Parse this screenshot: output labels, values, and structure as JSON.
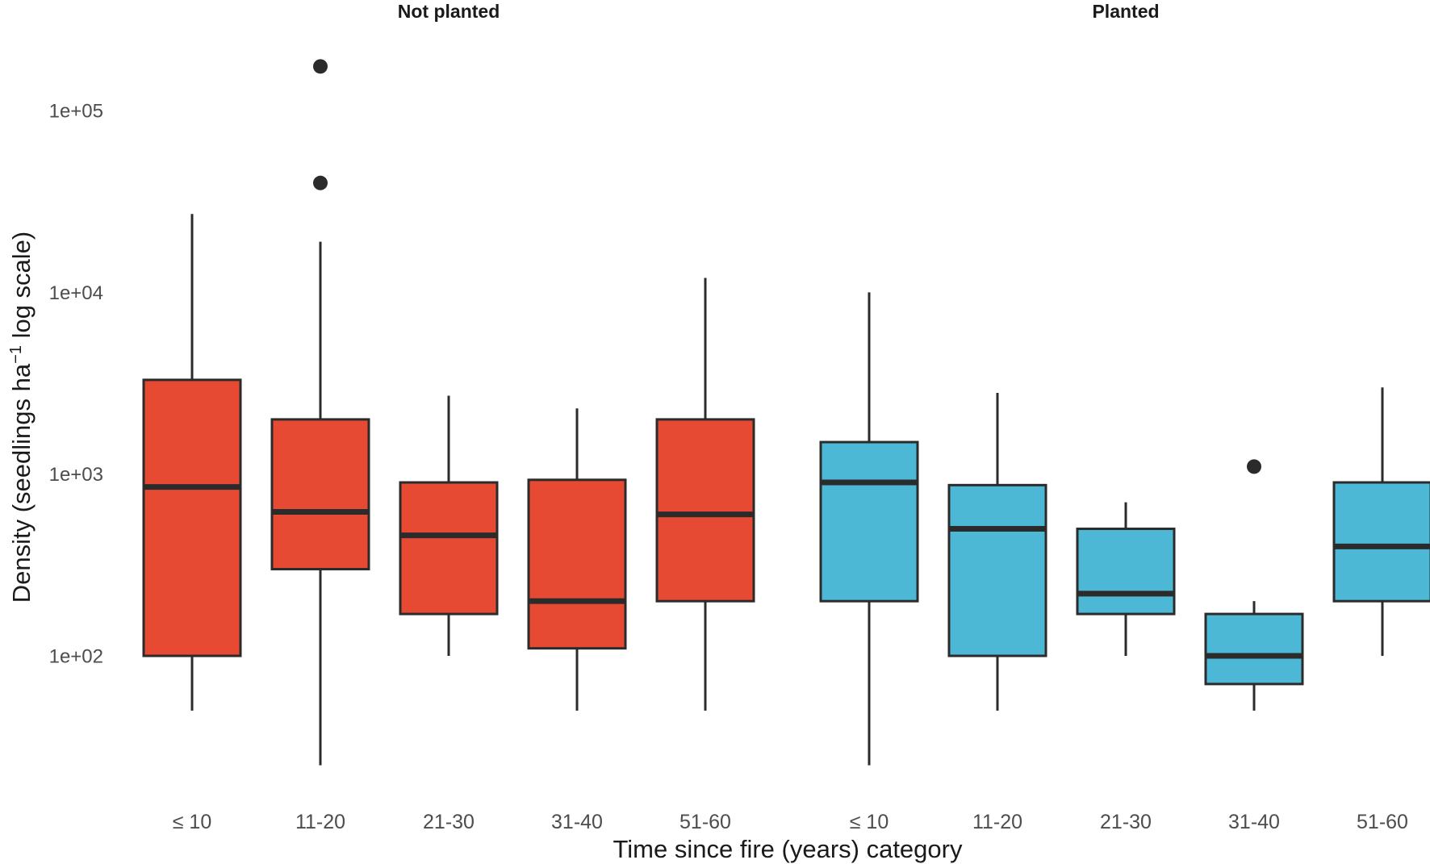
{
  "figure": {
    "background": "#FFFFFF",
    "panel_titles": [
      "Not planted",
      "Planted"
    ],
    "x_axis_title": "Time since fire (years) category",
    "y_axis_title": {
      "prefix": "Density (seedlings ha",
      "superscript": "−1",
      "suffix": " log scale)"
    },
    "colors": {
      "not_planted_fill": "#E64A33",
      "planted_fill": "#4DB8D6",
      "box_stroke": "#2B2B2B",
      "median_stroke": "#2B2B2B",
      "outlier_fill": "#2B2B2B",
      "axis_text": "#4D4D4D",
      "title_text": "#1A1A1A"
    }
  },
  "chart_data": {
    "type": "boxplot",
    "orientation": "vertical",
    "title": "",
    "xlabel": "Time since fire (years) category",
    "ylabel": "Density (seedlings ha−1 log scale)",
    "y_scale": "log10",
    "ylim": [
      20,
      200000
    ],
    "grid": false,
    "y_ticks": [
      "1e+02",
      "1e+03",
      "1e+04",
      "1e+05"
    ],
    "y_tick_values": [
      100,
      1000,
      10000,
      100000
    ],
    "categories": [
      "≤ 10",
      "11-20",
      "21-30",
      "31-40",
      "51-60"
    ],
    "panels": [
      {
        "title": "Not planted",
        "fill": "#E64A33",
        "boxes": [
          {
            "category": "≤ 10",
            "whisker_low": 50,
            "q1": 100,
            "median": 850,
            "q3": 3300,
            "whisker_high": 27000,
            "outliers": []
          },
          {
            "category": "11-20",
            "whisker_low": 25,
            "q1": 300,
            "median": 620,
            "q3": 2000,
            "whisker_high": 19000,
            "outliers": [
              40000,
              175000
            ]
          },
          {
            "category": "21-30",
            "whisker_low": 100,
            "q1": 170,
            "median": 460,
            "q3": 900,
            "whisker_high": 2700,
            "outliers": []
          },
          {
            "category": "31-40",
            "whisker_low": 50,
            "q1": 110,
            "median": 200,
            "q3": 930,
            "whisker_high": 2300,
            "outliers": []
          },
          {
            "category": "51-60",
            "whisker_low": 50,
            "q1": 200,
            "median": 600,
            "q3": 2000,
            "whisker_high": 12000,
            "outliers": []
          }
        ]
      },
      {
        "title": "Planted",
        "fill": "#4DB8D6",
        "boxes": [
          {
            "category": "≤ 10",
            "whisker_low": 25,
            "q1": 200,
            "median": 900,
            "q3": 1500,
            "whisker_high": 10000,
            "outliers": []
          },
          {
            "category": "11-20",
            "whisker_low": 50,
            "q1": 100,
            "median": 500,
            "q3": 870,
            "whisker_high": 2800,
            "outliers": []
          },
          {
            "category": "21-30",
            "whisker_low": 100,
            "q1": 170,
            "median": 220,
            "q3": 500,
            "whisker_high": 700,
            "outliers": []
          },
          {
            "category": "31-40",
            "whisker_low": 50,
            "q1": 70,
            "median": 100,
            "q3": 170,
            "whisker_high": 200,
            "outliers": [
              1100
            ]
          },
          {
            "category": "51-60",
            "whisker_low": 100,
            "q1": 200,
            "median": 400,
            "q3": 900,
            "whisker_high": 3000,
            "outliers": []
          }
        ]
      }
    ],
    "legend": null
  }
}
